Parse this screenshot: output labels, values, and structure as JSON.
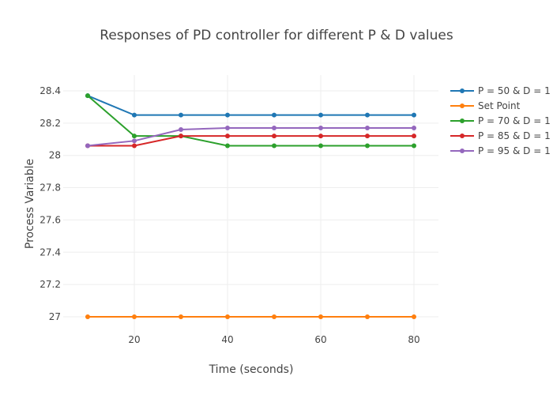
{
  "chart_data": {
    "type": "line",
    "title": "Responses of PD controller for different P & D values",
    "xlabel": "Time (seconds)",
    "ylabel": "Process Variable",
    "xlim": [
      5,
      83
    ],
    "ylim": [
      26.92,
      28.48
    ],
    "xticks": [
      20,
      40,
      60,
      80
    ],
    "yticks": [
      27,
      27.2,
      27.4,
      27.6,
      27.8,
      28,
      28.2,
      28.4
    ],
    "ytick_labels": [
      "27",
      "27.2",
      "27.4",
      "27.6",
      "27.8",
      "28",
      "28.2",
      "28.4"
    ],
    "grid": true,
    "legend_position": "right",
    "x": [
      10,
      20,
      30,
      40,
      50,
      60,
      70,
      80
    ],
    "series": [
      {
        "name": "P = 50 & D = 1",
        "color": "#1f77b4",
        "values": [
          28.37,
          28.25,
          28.25,
          28.25,
          28.25,
          28.25,
          28.25,
          28.25
        ]
      },
      {
        "name": "Set Point",
        "color": "#ff7f0e",
        "values": [
          27,
          27,
          27,
          27,
          27,
          27,
          27,
          27
        ]
      },
      {
        "name": "P = 70 & D = 1",
        "color": "#2ca02c",
        "values": [
          28.37,
          28.12,
          28.12,
          28.06,
          28.06,
          28.06,
          28.06,
          28.06
        ]
      },
      {
        "name": "P = 85 & D = 1",
        "color": "#d62728",
        "values": [
          28.06,
          28.06,
          28.12,
          28.12,
          28.12,
          28.12,
          28.12,
          28.12
        ]
      },
      {
        "name": "P = 95 & D = 1",
        "color": "#9467bd",
        "values": [
          28.06,
          28.09,
          28.16,
          28.17,
          28.17,
          28.17,
          28.17,
          28.17
        ]
      }
    ]
  }
}
